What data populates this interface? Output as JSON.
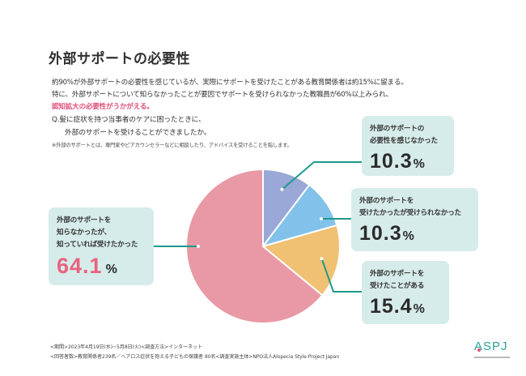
{
  "page": {
    "title": "外部サポートの必要性",
    "summary_line1": "約90%が外部サポートの必要性を感じているが、実際にサポートを受けたことがある教育関係者は約15%に留まる。",
    "summary_line2": "特に、外部サポートについて知らなかったことが要因でサポートを受けられなかった教職員が60%以上みられ、",
    "summary_highlight": "認知拡大の必要性がうかがえる。",
    "question_line1": "Q.髪に症状を持つ当事者のケアに困ったときに、",
    "question_line2": "外部のサポートを受けることができましたか。",
    "note": "※外部のサポートとは、専門家やピアカウンセラーなどに相談したり、アドバイスを受けることを指します。",
    "highlight_color": "#e04f7a",
    "footer_line1": "<期間>2023年4月19日(水)~5月8日(火)<調査方法>インターネット",
    "footer_line2": "<回答者数>教育関係者239名／ヘアロス症状を抱える子どもの保護者 80名<調査実施主体>NPO法人Alopecia Style Project Japan",
    "logo_text": "ASPJ"
  },
  "chart_data": {
    "type": "pie",
    "title": "外部サポートの必要性",
    "start_angle_deg": 0,
    "direction": "clockwise",
    "percent_symbol": "%",
    "slices": [
      {
        "label_line1": "外部のサポートの",
        "label_line2": "必要性を感じなかった",
        "label_line3": "",
        "value": 10.3,
        "value_text": "10.3",
        "color": "#99a8d6"
      },
      {
        "label_line1": "外部のサポートを",
        "label_line2": "受けたかったが受けられなかった",
        "label_line3": "",
        "value": 10.3,
        "value_text": "10.3",
        "color": "#82c2ea"
      },
      {
        "label_line1": "外部のサポートを",
        "label_line2": "受けたことがある",
        "label_line3": "",
        "value": 15.4,
        "value_text": "15.4",
        "color": "#f0c073"
      },
      {
        "label_line1": "外部のサポートを",
        "label_line2": "知らなかったが、",
        "label_line3": "知っていれば受けたかった",
        "value": 64.1,
        "value_text": "64.1",
        "color": "#e999a5"
      }
    ],
    "callout_bg": "#d6ecea",
    "leader_color": "#1e9a8c"
  }
}
